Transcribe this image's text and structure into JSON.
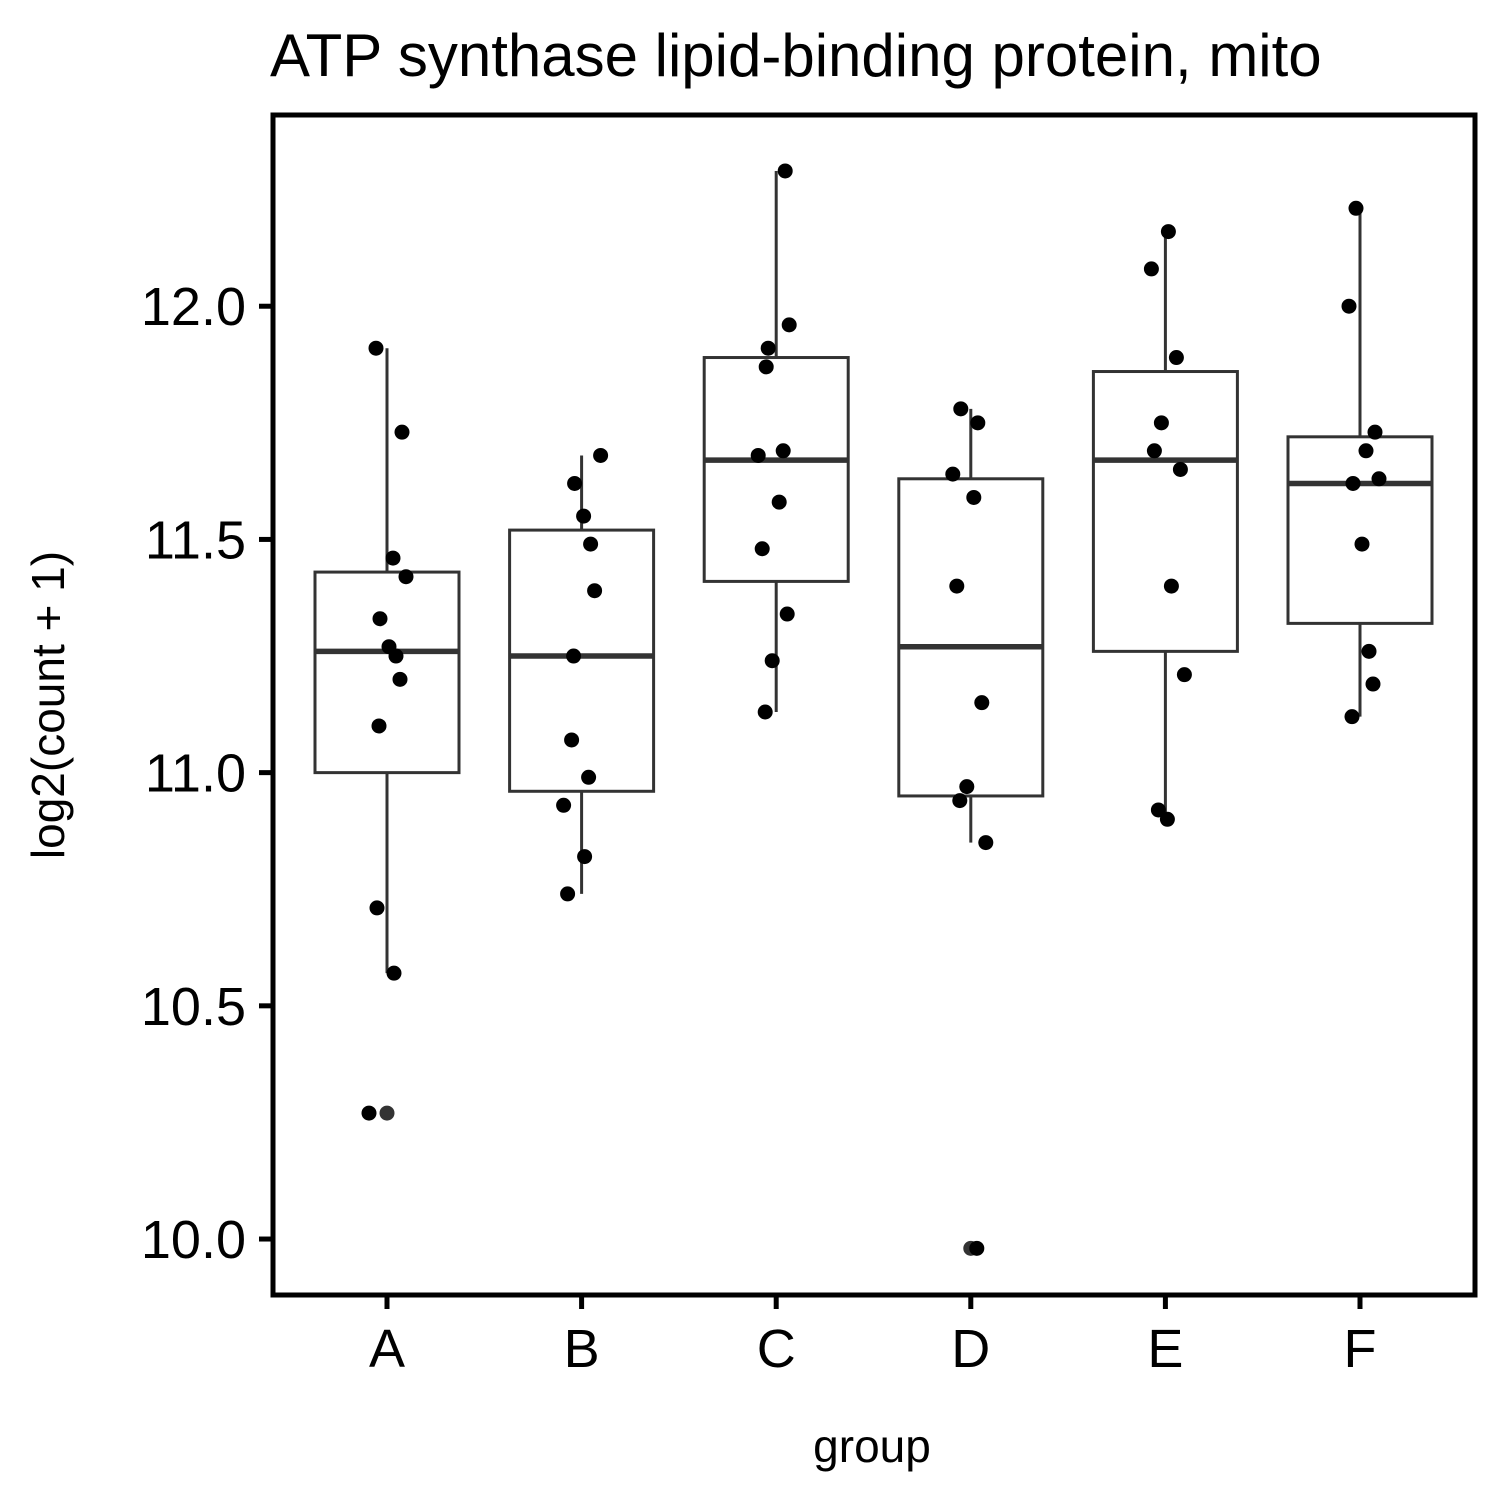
{
  "chart_data": {
    "type": "boxplot",
    "title": "ATP synthase lipid-binding protein, mito",
    "xlabel": "group",
    "ylabel": "log2(count + 1)",
    "ylim": [
      9.88,
      12.41
    ],
    "yticks": [
      "10.0",
      "10.5",
      "11.0",
      "11.5",
      "12.0"
    ],
    "categories": [
      "A",
      "B",
      "C",
      "D",
      "E",
      "F"
    ],
    "grid": false,
    "colors": {
      "box_stroke": "#333333",
      "point": "#000000",
      "outlier": "#333333",
      "frame": "#000000"
    },
    "boxes": [
      {
        "group": "A",
        "whisker_low": 10.57,
        "q1": 11.0,
        "median": 11.26,
        "q3": 11.43,
        "whisker_high": 11.91,
        "outliers": [
          10.27
        ]
      },
      {
        "group": "B",
        "whisker_low": 10.74,
        "q1": 10.96,
        "median": 11.25,
        "q3": 11.52,
        "whisker_high": 11.68,
        "outliers": []
      },
      {
        "group": "C",
        "whisker_low": 11.13,
        "q1": 11.41,
        "median": 11.67,
        "q3": 11.89,
        "whisker_high": 12.29,
        "outliers": []
      },
      {
        "group": "D",
        "whisker_low": 10.85,
        "q1": 10.95,
        "median": 11.27,
        "q3": 11.63,
        "whisker_high": 11.78,
        "outliers": [
          9.98
        ]
      },
      {
        "group": "E",
        "whisker_low": 10.9,
        "q1": 11.26,
        "median": 11.67,
        "q3": 11.86,
        "whisker_high": 12.16,
        "outliers": []
      },
      {
        "group": "F",
        "whisker_low": 11.12,
        "q1": 11.32,
        "median": 11.62,
        "q3": 11.72,
        "whisker_high": 12.21,
        "outliers": []
      }
    ],
    "points": [
      {
        "group": "A",
        "values": [
          11.91,
          11.73,
          11.46,
          11.42,
          11.33,
          11.27,
          11.25,
          11.2,
          11.1,
          10.71,
          10.57,
          10.27
        ]
      },
      {
        "group": "B",
        "values": [
          11.68,
          11.62,
          11.55,
          11.49,
          11.39,
          11.25,
          11.07,
          10.99,
          10.93,
          10.82,
          10.74
        ]
      },
      {
        "group": "C",
        "values": [
          12.29,
          11.96,
          11.91,
          11.87,
          11.69,
          11.68,
          11.58,
          11.48,
          11.34,
          11.24,
          11.13
        ]
      },
      {
        "group": "D",
        "values": [
          11.78,
          11.75,
          11.64,
          11.59,
          11.4,
          11.15,
          10.97,
          10.94,
          10.85,
          9.98
        ]
      },
      {
        "group": "E",
        "values": [
          12.16,
          12.08,
          11.89,
          11.75,
          11.69,
          11.65,
          11.4,
          11.21,
          10.92,
          10.9
        ]
      },
      {
        "group": "F",
        "values": [
          12.21,
          12.0,
          11.73,
          11.69,
          11.63,
          11.62,
          11.49,
          11.26,
          11.19,
          11.12
        ]
      }
    ]
  }
}
